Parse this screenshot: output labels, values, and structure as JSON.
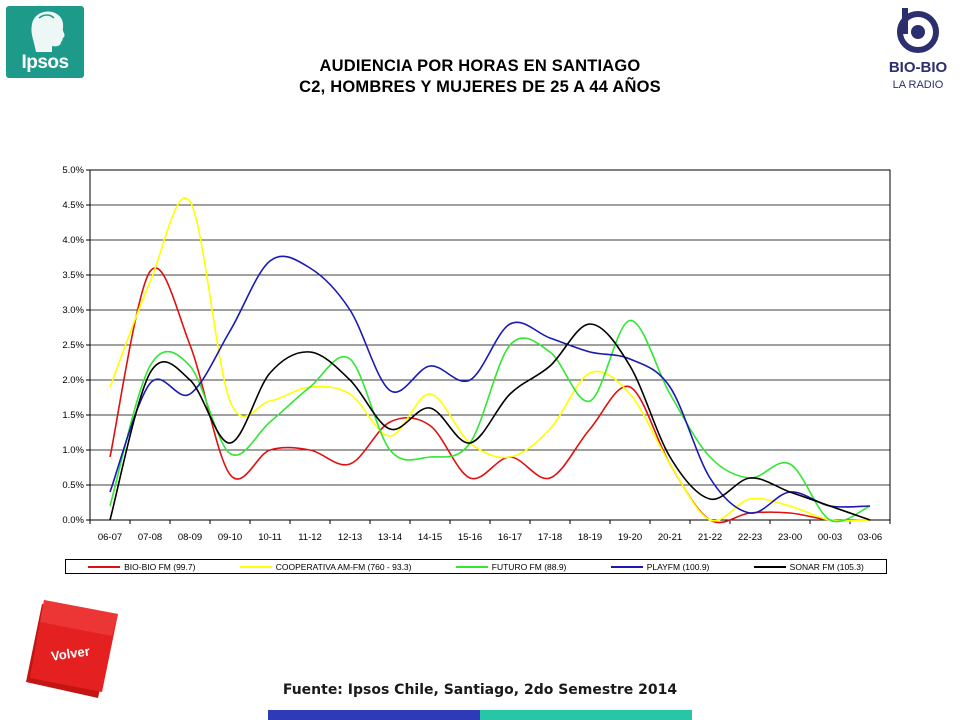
{
  "header": {
    "title_line1": "AUDIENCIA POR HORAS EN SANTIAGO",
    "title_line2": "C2, HOMBRES Y MUJERES DE 25 A 44 AÑOS"
  },
  "logos": {
    "ipsos_text": "Ipsos",
    "biobio_text": "BIO-BIO",
    "biobio_subtext": "LA RADIO"
  },
  "footer": {
    "source": "Fuente: Ipsos Chile, Santiago, 2do Semestre 2014",
    "volver_label": "Volver"
  },
  "colors": {
    "ipsos_green": "#1e9a8a",
    "volver_red": "#e01a1a",
    "bar_blue": "#2e3ab7",
    "bar_teal": "#26c6a6"
  },
  "chart_data": {
    "type": "line",
    "title": "",
    "xlabel": "",
    "ylabel": "",
    "ylim": [
      0,
      0.05
    ],
    "yticks": [
      0,
      0.005,
      0.01,
      0.015,
      0.02,
      0.025,
      0.03,
      0.035,
      0.04,
      0.045,
      0.05
    ],
    "ytick_labels": [
      "0.0%",
      "0.5%",
      "1.0%",
      "1.5%",
      "2.0%",
      "2.5%",
      "3.0%",
      "3.5%",
      "4.0%",
      "4.5%",
      "5.0%"
    ],
    "grid": true,
    "legend_position": "bottom",
    "categories": [
      "06-07",
      "07-08",
      "08-09",
      "09-10",
      "10-11",
      "11-12",
      "12-13",
      "13-14",
      "14-15",
      "15-16",
      "16-17",
      "17-18",
      "18-19",
      "19-20",
      "20-21",
      "21-22",
      "22-23",
      "23-00",
      "00-03",
      "03-06"
    ],
    "series": [
      {
        "name": "BIO-BIO FM (99.7)",
        "color": "#e01010",
        "values": [
          0.009,
          0.0355,
          0.025,
          0.0065,
          0.01,
          0.01,
          0.008,
          0.014,
          0.0135,
          0.006,
          0.009,
          0.006,
          0.013,
          0.019,
          0.008,
          0.0,
          0.001,
          0.001,
          0.0,
          0.0
        ]
      },
      {
        "name": "COOPERATIVA AM-FM (760 - 93.3)",
        "color": "#ffff00",
        "values": [
          0.019,
          0.034,
          0.0455,
          0.017,
          0.017,
          0.019,
          0.018,
          0.012,
          0.018,
          0.011,
          0.009,
          0.013,
          0.021,
          0.018,
          0.008,
          0.0,
          0.003,
          0.002,
          0.0,
          0.0
        ]
      },
      {
        "name": "FUTURO FM (88.9)",
        "color": "#33e633",
        "values": [
          0.002,
          0.022,
          0.022,
          0.0095,
          0.014,
          0.019,
          0.023,
          0.01,
          0.009,
          0.011,
          0.025,
          0.024,
          0.017,
          0.0285,
          0.018,
          0.009,
          0.006,
          0.008,
          0.0,
          0.002
        ]
      },
      {
        "name": "PLAYFM (100.9)",
        "color": "#1a1ab3",
        "values": [
          0.004,
          0.0195,
          0.018,
          0.027,
          0.037,
          0.036,
          0.03,
          0.0185,
          0.022,
          0.02,
          0.028,
          0.026,
          0.024,
          0.023,
          0.019,
          0.006,
          0.001,
          0.004,
          0.002,
          0.002
        ]
      },
      {
        "name": "SONAR FM (105.3)",
        "color": "#000000",
        "values": [
          0.0,
          0.021,
          0.02,
          0.011,
          0.021,
          0.024,
          0.02,
          0.013,
          0.016,
          0.011,
          0.018,
          0.022,
          0.028,
          0.022,
          0.009,
          0.003,
          0.006,
          0.004,
          0.002,
          0.0
        ]
      }
    ]
  }
}
